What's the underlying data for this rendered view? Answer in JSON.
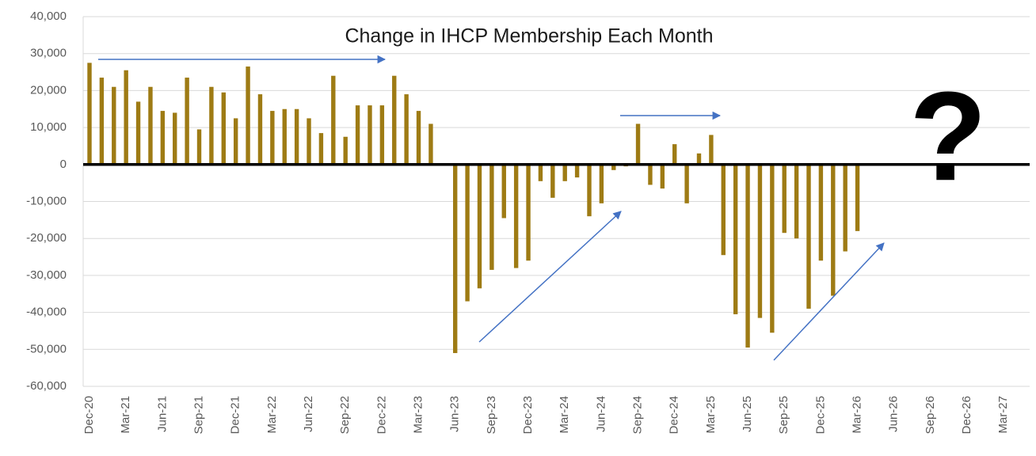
{
  "chart_data": {
    "type": "bar",
    "title": "Change in IHCP Membership Each Month",
    "annotations": [
      "?"
    ],
    "color": "#9e7b14",
    "grid": true,
    "ylim": [
      -60000,
      40000
    ],
    "yticks": [
      {
        "value": -60000,
        "label": "-60,000"
      },
      {
        "value": -50000,
        "label": "-50,000"
      },
      {
        "value": -40000,
        "label": "-40,000"
      },
      {
        "value": -30000,
        "label": "-30,000"
      },
      {
        "value": -20000,
        "label": "-20,000"
      },
      {
        "value": -10000,
        "label": "-10,000"
      },
      0,
      {
        "value": 10000,
        "label": "10,000"
      },
      {
        "value": 20000,
        "label": "20,000"
      },
      {
        "value": 30000,
        "label": "30,000"
      },
      {
        "value": 40000,
        "label": "40,000"
      }
    ],
    "categories": [
      "Dec-20",
      null,
      null,
      "Mar-21",
      null,
      null,
      "Jun-21",
      null,
      null,
      "Sep-21",
      null,
      null,
      "Dec-21",
      null,
      null,
      "Mar-22",
      null,
      null,
      "Jun-22",
      null,
      null,
      "Sep-22",
      null,
      null,
      "Dec-22",
      null,
      null,
      "Mar-23",
      null,
      null,
      "Jun-23",
      null,
      null,
      "Sep-23",
      null,
      null,
      "Dec-23",
      null,
      null,
      "Mar-24",
      null,
      null,
      "Jun-24",
      null,
      null,
      "Sep-24",
      null,
      null,
      "Dec-24",
      null,
      null,
      "Mar-25",
      null,
      null,
      "Jun-25",
      null,
      null,
      "Sep-25",
      null,
      null,
      "Dec-25",
      null,
      null,
      "Mar-26",
      null,
      null,
      "Jun-26",
      null,
      null,
      "Sep-26",
      null,
      null,
      "Dec-26",
      null,
      null,
      "Mar-27"
    ],
    "values": [
      27500,
      23500,
      21000,
      25500,
      17000,
      21000,
      14500,
      14000,
      23500,
      9500,
      21000,
      19500,
      12500,
      26500,
      19000,
      14500,
      15000,
      15000,
      12500,
      8500,
      24000,
      7500,
      16000,
      16000,
      16000,
      24000,
      19000,
      14500,
      11000,
      null,
      -51000,
      -37000,
      -33500,
      -28500,
      -14500,
      -28000,
      -26000,
      -4500,
      -9000,
      -4500,
      -3500,
      -14000,
      -10500,
      -1500,
      -500,
      11000,
      -5500,
      -6500,
      5500,
      -10500,
      3000,
      8000,
      -24500,
      -40500,
      -49500,
      -41500,
      -45500,
      -18500,
      -20000,
      -39000,
      -26000,
      -35500,
      -23500,
      -18000,
      null,
      null,
      null,
      null,
      null,
      null,
      null,
      null,
      null,
      null,
      null,
      null
    ]
  }
}
